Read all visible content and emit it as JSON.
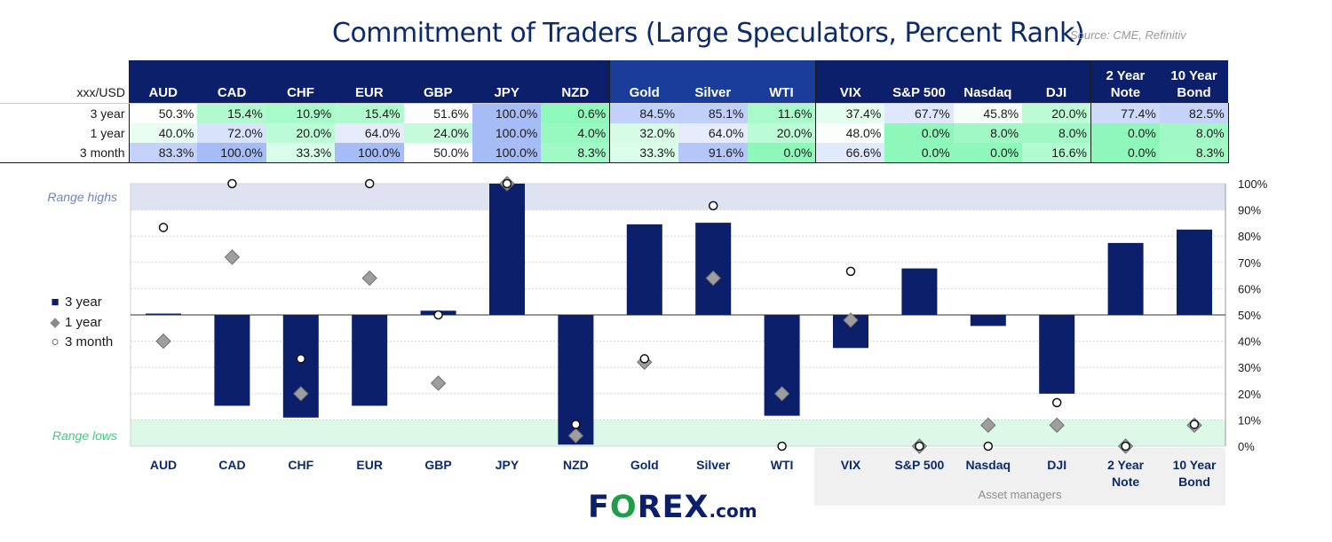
{
  "title": "Commitment of Traders (Large Speculators, Percent Rank)",
  "source": "Source: CME, Refinitiv",
  "table": {
    "corner_label": "xxx/USD",
    "columns": [
      "AUD",
      "CAD",
      "CHF",
      "EUR",
      "GBP",
      "JPY",
      "NZD",
      "Gold",
      "Silver",
      "WTI",
      "VIX",
      "S&P 500",
      "Nasdaq",
      "DJI",
      "2 Year Note",
      "10 Year Bond"
    ],
    "rows": [
      {
        "label": "3 year",
        "values": [
          "50.3%",
          "15.4%",
          "10.9%",
          "15.4%",
          "51.6%",
          "100.0%",
          "0.6%",
          "84.5%",
          "85.1%",
          "11.6%",
          "37.4%",
          "67.7%",
          "45.8%",
          "20.0%",
          "77.4%",
          "82.5%"
        ]
      },
      {
        "label": "1 year",
        "values": [
          "40.0%",
          "72.0%",
          "20.0%",
          "64.0%",
          "24.0%",
          "100.0%",
          "4.0%",
          "32.0%",
          "64.0%",
          "20.0%",
          "48.0%",
          "0.0%",
          "8.0%",
          "8.0%",
          "0.0%",
          "8.0%"
        ]
      },
      {
        "label": "3 month",
        "values": [
          "83.3%",
          "100.0%",
          "33.3%",
          "100.0%",
          "50.0%",
          "100.0%",
          "8.3%",
          "33.3%",
          "91.6%",
          "0.0%",
          "66.6%",
          "0.0%",
          "0.0%",
          "16.6%",
          "0.0%",
          "8.3%"
        ]
      }
    ]
  },
  "chart_data": {
    "type": "bar",
    "categories": [
      "AUD",
      "CAD",
      "CHF",
      "EUR",
      "GBP",
      "JPY",
      "NZD",
      "Gold",
      "Silver",
      "WTI",
      "VIX",
      "S&P 500",
      "Nasdaq",
      "DJI",
      "2 Year Note",
      "10 Year Bond"
    ],
    "series": [
      {
        "name": "3 year",
        "marker": "bar (floating from 50%)",
        "values": [
          50.3,
          15.4,
          10.9,
          15.4,
          51.6,
          100.0,
          0.6,
          84.5,
          85.1,
          11.6,
          37.4,
          67.7,
          45.8,
          20.0,
          77.4,
          82.5
        ]
      },
      {
        "name": "1 year",
        "marker": "diamond",
        "values": [
          40.0,
          72.0,
          20.0,
          64.0,
          24.0,
          100.0,
          4.0,
          32.0,
          64.0,
          20.0,
          48.0,
          0.0,
          8.0,
          8.0,
          0.0,
          8.0
        ]
      },
      {
        "name": "3 month",
        "marker": "circle",
        "values": [
          83.3,
          100.0,
          33.3,
          100.0,
          50.0,
          100.0,
          8.3,
          33.3,
          91.6,
          0.0,
          66.6,
          0.0,
          0.0,
          16.6,
          0.0,
          8.3
        ]
      }
    ],
    "baseline": 50,
    "ylim": [
      0,
      100
    ],
    "yticks": [
      "0%",
      "10%",
      "20%",
      "30%",
      "40%",
      "50%",
      "60%",
      "70%",
      "80%",
      "90%",
      "100%"
    ],
    "bands": [
      {
        "label": "Range highs",
        "from": 90,
        "to": 100,
        "color": "#dfe3f1"
      },
      {
        "label": "Range lows",
        "from": 0,
        "to": 10,
        "color": "#dcf9e8"
      }
    ],
    "group_label": "Asset managers",
    "legend_position": "left"
  },
  "colors": {
    "navy": "#0c1f6b",
    "marker_gray": "#9e9e9e",
    "range_highs_text": "#6f86b5",
    "range_lows_text": "#3ecf7e"
  },
  "logo": {
    "text_f": "F",
    "text_o": "O",
    "text_rest": "REX",
    "text_com": ".com"
  }
}
